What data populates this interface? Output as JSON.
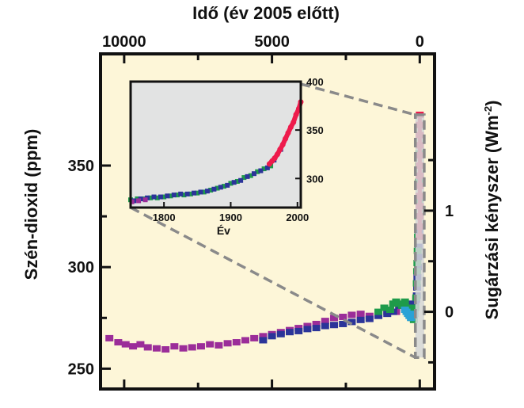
{
  "chart_data": [
    {
      "type": "scatter",
      "title": "",
      "top_xlabel": "Idő (év 2005 előtt)",
      "ylabel_left": "Szén-dioxid (ppm)",
      "ylabel_right": "Sugárzási kényszer (Wm",
      "ylabel_right_sup": "-2",
      "ylabel_right_close": ")",
      "xlim": [
        10800,
        -500
      ],
      "ylim": [
        240,
        405
      ],
      "x_ticks": [
        10000,
        5000,
        0
      ],
      "x_tick_labels": [
        "10000",
        "5000",
        "0"
      ],
      "y_ticks_left": [
        250,
        300,
        350
      ],
      "y_tick_labels_left": [
        "250",
        "300",
        "350"
      ],
      "y_ticks_right_ppm": [
        278,
        327.8
      ],
      "y_tick_labels_right": [
        "0",
        "1"
      ],
      "highlight_box": {
        "x": [
          150,
          -150
        ],
        "y": [
          255.5,
          375
        ]
      },
      "background": "#fdf6d8",
      "series": [
        {
          "color": "#9b2d99",
          "points": [
            [
              10500,
              265
            ],
            [
              10200,
              263
            ],
            [
              9950,
              262
            ],
            [
              9700,
              261
            ],
            [
              9450,
              262
            ],
            [
              9200,
              260.5
            ],
            [
              8900,
              260
            ],
            [
              8600,
              259.5
            ],
            [
              8300,
              261
            ],
            [
              8000,
              260
            ],
            [
              7700,
              260.5
            ],
            [
              7400,
              261
            ],
            [
              7100,
              262
            ],
            [
              6800,
              261.5
            ],
            [
              6500,
              262.5
            ],
            [
              6200,
              263
            ],
            [
              5900,
              264
            ],
            [
              5600,
              265
            ],
            [
              5300,
              266
            ],
            [
              5000,
              267
            ],
            [
              4700,
              268
            ],
            [
              4400,
              269
            ],
            [
              4100,
              270
            ],
            [
              3800,
              271
            ],
            [
              3500,
              272
            ],
            [
              3200,
              273.5
            ],
            [
              2900,
              275
            ],
            [
              2600,
              275.5
            ],
            [
              2300,
              276.5
            ],
            [
              2000,
              277
            ],
            [
              1700,
              276
            ],
            [
              1400,
              277
            ],
            [
              1100,
              278
            ],
            [
              800,
              278
            ]
          ]
        },
        {
          "color": "#2b3499",
          "points": [
            [
              5300,
              264
            ],
            [
              5000,
              266
            ],
            [
              4700,
              267
            ],
            [
              4400,
              268
            ],
            [
              4100,
              268.5
            ],
            [
              3800,
              269.5
            ],
            [
              3500,
              270
            ],
            [
              3200,
              271
            ],
            [
              2900,
              271.5
            ],
            [
              2600,
              272
            ],
            [
              2300,
              273
            ],
            [
              2000,
              274
            ],
            [
              1700,
              274.5
            ],
            [
              1400,
              276
            ],
            [
              1100,
              277
            ],
            [
              900,
              278
            ],
            [
              700,
              281
            ],
            [
              500,
              280
            ],
            [
              350,
              282
            ],
            [
              250,
              279
            ],
            [
              150,
              281
            ],
            [
              120,
              284
            ],
            [
              100,
              286
            ],
            [
              90,
              290
            ],
            [
              80,
              295
            ],
            [
              60,
              300
            ],
            [
              50,
              305
            ],
            [
              40,
              310
            ],
            [
              30,
              318
            ],
            [
              20,
              325
            ],
            [
              10,
              335
            ],
            [
              5,
              345
            ]
          ]
        },
        {
          "color": "#1e9b4a",
          "points": [
            [
              1400,
              278
            ],
            [
              1200,
              280
            ],
            [
              1000,
              279
            ],
            [
              900,
              282
            ],
            [
              800,
              283
            ],
            [
              700,
              282
            ],
            [
              600,
              281
            ],
            [
              500,
              283
            ],
            [
              400,
              280
            ],
            [
              300,
              278
            ],
            [
              250,
              275
            ],
            [
              200,
              274
            ],
            [
              180,
              277
            ],
            [
              150,
              280
            ],
            [
              120,
              285
            ],
            [
              100,
              292
            ],
            [
              90,
              298
            ],
            [
              80,
              302
            ],
            [
              70,
              308
            ],
            [
              60,
              315
            ],
            [
              50,
              325
            ],
            [
              40,
              333
            ],
            [
              30,
              342
            ],
            [
              20,
              350
            ],
            [
              15,
              356
            ],
            [
              10,
              360
            ]
          ]
        },
        {
          "color": "#2aa2d6",
          "points": [
            [
              500,
              279
            ],
            [
              450,
              278
            ],
            [
              400,
              277
            ],
            [
              350,
              276
            ],
            [
              300,
              275
            ],
            [
              250,
              276
            ],
            [
              200,
              277
            ]
          ]
        },
        {
          "color": "#ee1b4c",
          "points": [
            [
              5,
              315
            ],
            [
              5,
              320
            ],
            [
              5,
              325
            ],
            [
              4,
              330
            ],
            [
              4,
              335
            ],
            [
              3,
              340
            ],
            [
              3,
              345
            ],
            [
              2,
              350
            ],
            [
              2,
              355
            ],
            [
              1,
              360
            ],
            [
              1,
              365
            ],
            [
              0,
              370
            ],
            [
              0,
              375
            ]
          ]
        }
      ]
    },
    {
      "type": "scatter",
      "role": "inset",
      "xlabel": "Év",
      "xlim": [
        1750,
        2005
      ],
      "ylim": [
        270,
        400
      ],
      "x_ticks": [
        1800,
        1900,
        2000
      ],
      "x_tick_labels": [
        "1800",
        "1900",
        "2000"
      ],
      "y_ticks": [
        300,
        350,
        400
      ],
      "y_tick_labels": [
        "300",
        "350",
        "400"
      ],
      "background": "#e2e3e3",
      "series": [
        {
          "color": "#1e9b4a",
          "points": [
            [
              1750,
              278
            ],
            [
              1760,
              279
            ],
            [
              1770,
              279
            ],
            [
              1780,
              280
            ],
            [
              1790,
              280
            ],
            [
              1800,
              281
            ],
            [
              1810,
              282
            ],
            [
              1820,
              283
            ],
            [
              1830,
              283
            ],
            [
              1840,
              284
            ],
            [
              1850,
              285
            ],
            [
              1860,
              286
            ],
            [
              1870,
              288
            ],
            [
              1880,
              290
            ],
            [
              1890,
              292
            ],
            [
              1900,
              295
            ],
            [
              1910,
              297
            ],
            [
              1920,
              301
            ],
            [
              1930,
              303
            ],
            [
              1940,
              307
            ],
            [
              1950,
              310
            ],
            [
              1960,
              313
            ]
          ]
        },
        {
          "color": "#2b3499",
          "points": [
            [
              1755,
              277
            ],
            [
              1765,
              279
            ],
            [
              1775,
              280
            ],
            [
              1785,
              281
            ],
            [
              1795,
              281
            ],
            [
              1805,
              282
            ],
            [
              1815,
              283
            ],
            [
              1825,
              284
            ],
            [
              1835,
              284
            ],
            [
              1845,
              285
            ],
            [
              1855,
              286
            ],
            [
              1865,
              287
            ],
            [
              1875,
              289
            ],
            [
              1885,
              291
            ],
            [
              1895,
              293
            ],
            [
              1905,
              296
            ],
            [
              1915,
              298
            ],
            [
              1925,
              302
            ],
            [
              1935,
              305
            ],
            [
              1945,
              308
            ],
            [
              1955,
              311
            ],
            [
              1965,
              319
            ],
            [
              1975,
              330
            ]
          ]
        },
        {
          "color": "#9b2d99",
          "points": [
            [
              1752,
              276
            ],
            [
              1762,
              277
            ],
            [
              1772,
              278
            ]
          ]
        },
        {
          "color": "#ee1b4c",
          "points": [
            [
              1958,
              315
            ],
            [
              1962,
              318
            ],
            [
              1966,
              321
            ],
            [
              1970,
              325
            ],
            [
              1974,
              330
            ],
            [
              1978,
              335
            ],
            [
              1982,
              341
            ],
            [
              1986,
              347
            ],
            [
              1990,
              353
            ],
            [
              1994,
              358
            ],
            [
              1998,
              366
            ],
            [
              2002,
              372
            ],
            [
              2005,
              379
            ]
          ]
        }
      ]
    }
  ]
}
